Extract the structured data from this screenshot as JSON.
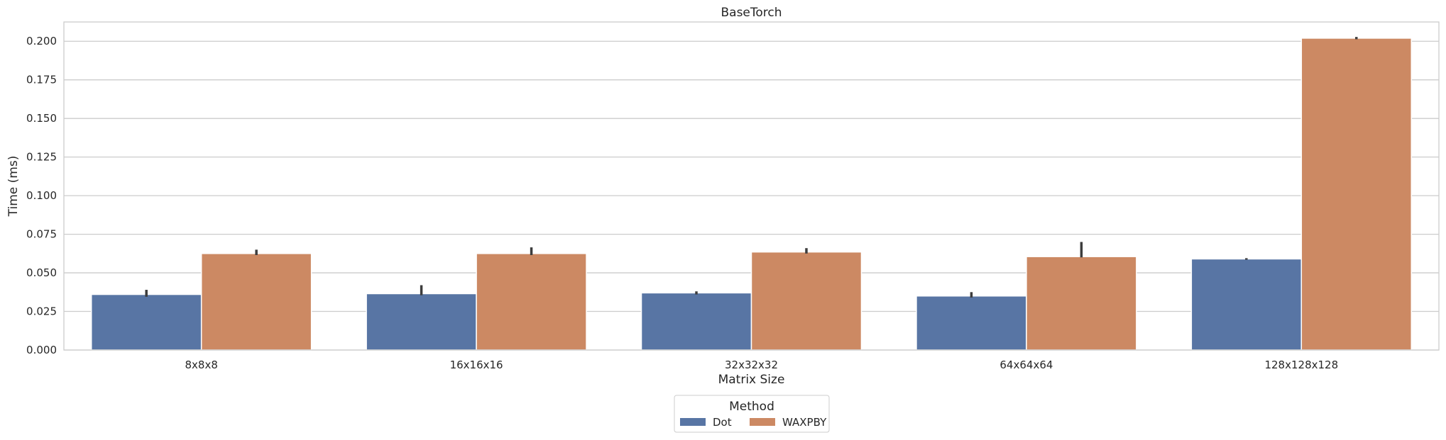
{
  "chart_data": {
    "type": "bar",
    "title": "BaseTorch",
    "xlabel": "Matrix Size",
    "ylabel": "Time (ms)",
    "categories": [
      "8x8x8",
      "16x16x16",
      "32x32x32",
      "64x64x64",
      "128x128x128"
    ],
    "ylim": [
      0,
      0.2125
    ],
    "yticks": [
      "0.000",
      "0.025",
      "0.050",
      "0.075",
      "0.100",
      "0.125",
      "0.150",
      "0.175",
      "0.200"
    ],
    "grid": true,
    "legend": {
      "title": "Method",
      "placement": "bottom-center"
    },
    "series": [
      {
        "name": "Dot",
        "color": "#5875a4",
        "values": [
          0.036,
          0.0365,
          0.037,
          0.035,
          0.059
        ],
        "error_low": [
          0.0345,
          0.0355,
          0.036,
          0.034,
          0.0585
        ],
        "error_high": [
          0.039,
          0.042,
          0.038,
          0.0375,
          0.0595
        ]
      },
      {
        "name": "WAXPBY",
        "color": "#cc8963",
        "values": [
          0.0625,
          0.0625,
          0.0635,
          0.0605,
          0.202
        ],
        "error_low": [
          0.0615,
          0.0615,
          0.0625,
          0.06,
          0.2013
        ],
        "error_high": [
          0.065,
          0.0665,
          0.066,
          0.07,
          0.2028
        ]
      }
    ]
  }
}
